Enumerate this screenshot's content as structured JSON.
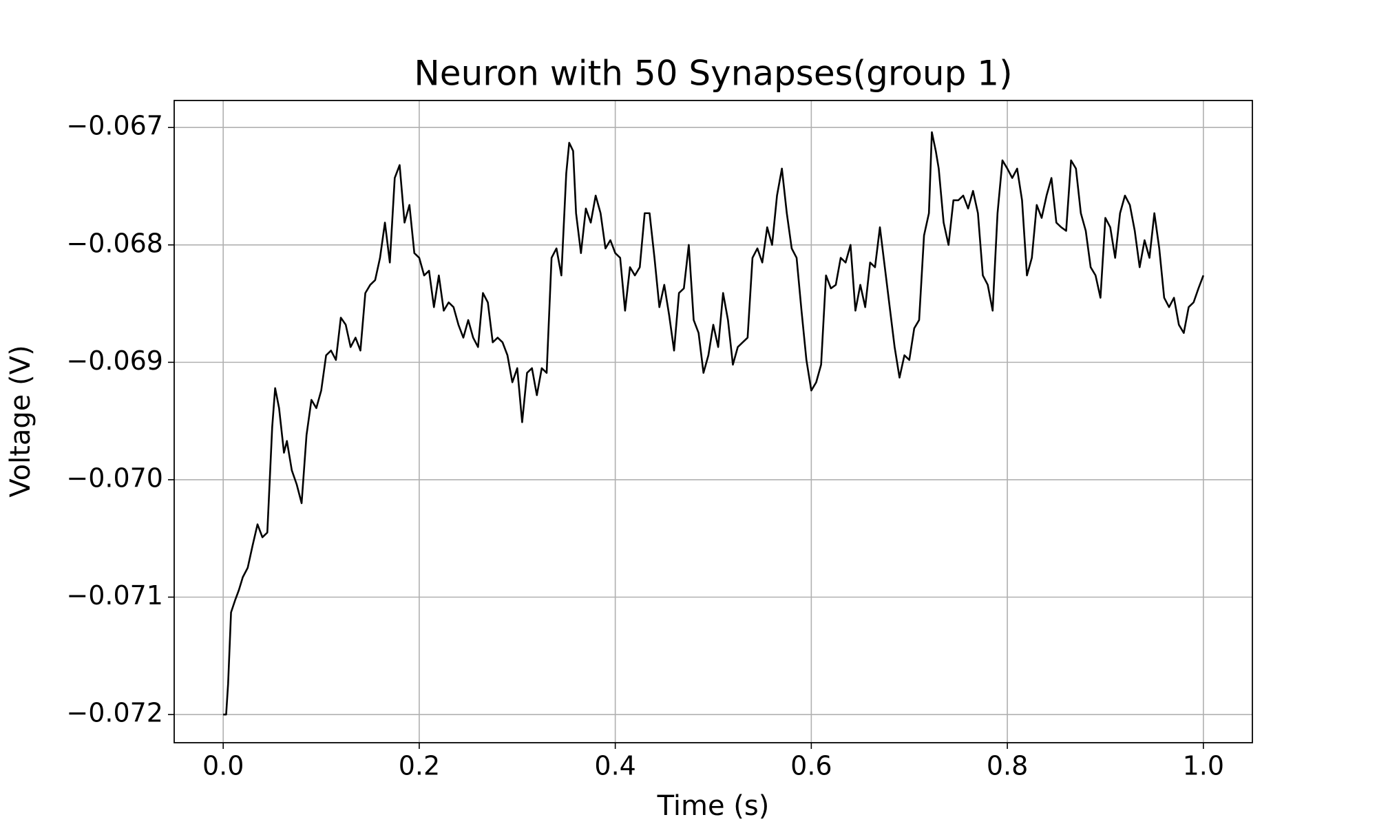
{
  "chart_data": {
    "type": "line",
    "title": "Neuron with 50 Synapses(group 1)",
    "xlabel": "Time (s)",
    "ylabel": "Voltage (V)",
    "color": "#000000",
    "grid": true,
    "xlim": [
      -0.05,
      1.05
    ],
    "ylim": [
      -0.07224,
      -0.06677
    ],
    "xticks": [
      {
        "value": 0,
        "label": "0.0"
      },
      0.2,
      0.4,
      0.6,
      0.8,
      {
        "value": 1,
        "label": "1.0"
      }
    ],
    "yticks": [
      {
        "value": -0.072,
        "label": "−0.072"
      },
      {
        "value": -0.071,
        "label": "−0.071"
      },
      {
        "value": -0.07,
        "label": "−0.070"
      },
      {
        "value": -0.069,
        "label": "−0.069"
      },
      {
        "value": -0.068,
        "label": "−0.068"
      },
      {
        "value": -0.067,
        "label": "−0.067"
      }
    ],
    "x": [
      0,
      0.003,
      0.005,
      0.008,
      0.012,
      0.016,
      0.02,
      0.025,
      0.03,
      0.035,
      0.04,
      0.045,
      0.05,
      0.053,
      0.057,
      0.062,
      0.065,
      0.07,
      0.075,
      0.08,
      0.085,
      0.09,
      0.095,
      0.1,
      0.105,
      0.11,
      0.115,
      0.12,
      0.125,
      0.13,
      0.135,
      0.14,
      0.145,
      0.15,
      0.155,
      0.16,
      0.165,
      0.17,
      0.175,
      0.18,
      0.185,
      0.19,
      0.195,
      0.2,
      0.205,
      0.21,
      0.215,
      0.22,
      0.225,
      0.23,
      0.235,
      0.24,
      0.245,
      0.25,
      0.255,
      0.26,
      0.265,
      0.27,
      0.275,
      0.28,
      0.285,
      0.29,
      0.295,
      0.3,
      0.305,
      0.31,
      0.315,
      0.32,
      0.325,
      0.33,
      0.335,
      0.34,
      0.345,
      0.35,
      0.353,
      0.357,
      0.36,
      0.365,
      0.37,
      0.375,
      0.38,
      0.385,
      0.39,
      0.395,
      0.4,
      0.405,
      0.41,
      0.415,
      0.42,
      0.425,
      0.43,
      0.435,
      0.44,
      0.445,
      0.45,
      0.455,
      0.46,
      0.465,
      0.47,
      0.475,
      0.48,
      0.485,
      0.49,
      0.495,
      0.5,
      0.505,
      0.51,
      0.515,
      0.52,
      0.525,
      0.53,
      0.535,
      0.54,
      0.545,
      0.55,
      0.555,
      0.56,
      0.565,
      0.57,
      0.575,
      0.58,
      0.585,
      0.59,
      0.595,
      0.6,
      0.605,
      0.61,
      0.615,
      0.62,
      0.625,
      0.63,
      0.635,
      0.64,
      0.645,
      0.65,
      0.655,
      0.66,
      0.665,
      0.67,
      0.675,
      0.68,
      0.685,
      0.69,
      0.695,
      0.7,
      0.705,
      0.71,
      0.715,
      0.72,
      0.723,
      0.727,
      0.73,
      0.735,
      0.74,
      0.745,
      0.75,
      0.755,
      0.76,
      0.765,
      0.77,
      0.775,
      0.78,
      0.785,
      0.79,
      0.795,
      0.8,
      0.805,
      0.81,
      0.815,
      0.82,
      0.825,
      0.83,
      0.835,
      0.84,
      0.845,
      0.85,
      0.855,
      0.86,
      0.865,
      0.87,
      0.875,
      0.88,
      0.885,
      0.89,
      0.895,
      0.9,
      0.905,
      0.91,
      0.915,
      0.92,
      0.925,
      0.93,
      0.935,
      0.94,
      0.945,
      0.95,
      0.955,
      0.96,
      0.965,
      0.97,
      0.975,
      0.98,
      0.985,
      0.99,
      0.995,
      1.0
    ],
    "values": [
      -0.072,
      -0.072,
      -0.07174,
      -0.07113,
      -0.07103,
      -0.07094,
      -0.07083,
      -0.07075,
      -0.07056,
      -0.07038,
      -0.07049,
      -0.07045,
      -0.06955,
      -0.06922,
      -0.06939,
      -0.06977,
      -0.06967,
      -0.06992,
      -0.07004,
      -0.0702,
      -0.06962,
      -0.06932,
      -0.06939,
      -0.06924,
      -0.06894,
      -0.0689,
      -0.06898,
      -0.06862,
      -0.06868,
      -0.06887,
      -0.06879,
      -0.0689,
      -0.06841,
      -0.06834,
      -0.0683,
      -0.06811,
      -0.06781,
      -0.06815,
      -0.06743,
      -0.06732,
      -0.06781,
      -0.06766,
      -0.06807,
      -0.06811,
      -0.06826,
      -0.06822,
      -0.06853,
      -0.06826,
      -0.06856,
      -0.06849,
      -0.06853,
      -0.06868,
      -0.06879,
      -0.06864,
      -0.06879,
      -0.06887,
      -0.06841,
      -0.06849,
      -0.06883,
      -0.06879,
      -0.06883,
      -0.06894,
      -0.06917,
      -0.06905,
      -0.06951,
      -0.06909,
      -0.06905,
      -0.06928,
      -0.06905,
      -0.06909,
      -0.06811,
      -0.06803,
      -0.06826,
      -0.06739,
      -0.06713,
      -0.0672,
      -0.06773,
      -0.06807,
      -0.06769,
      -0.06781,
      -0.06758,
      -0.06773,
      -0.06803,
      -0.06796,
      -0.06807,
      -0.06811,
      -0.06856,
      -0.06819,
      -0.06826,
      -0.06819,
      -0.06773,
      -0.06773,
      -0.06811,
      -0.06853,
      -0.06834,
      -0.0686,
      -0.0689,
      -0.06841,
      -0.06837,
      -0.068,
      -0.06864,
      -0.06875,
      -0.06909,
      -0.06894,
      -0.06868,
      -0.06887,
      -0.06841,
      -0.06864,
      -0.06902,
      -0.06887,
      -0.06883,
      -0.06879,
      -0.06811,
      -0.06803,
      -0.06815,
      -0.06785,
      -0.068,
      -0.06758,
      -0.06735,
      -0.06773,
      -0.06803,
      -0.06811,
      -0.06856,
      -0.06898,
      -0.06924,
      -0.06917,
      -0.06902,
      -0.06826,
      -0.06837,
      -0.06834,
      -0.06811,
      -0.06815,
      -0.068,
      -0.06856,
      -0.06834,
      -0.06853,
      -0.06815,
      -0.06819,
      -0.06785,
      -0.06819,
      -0.06853,
      -0.06887,
      -0.06913,
      -0.06894,
      -0.06898,
      -0.06871,
      -0.06864,
      -0.06792,
      -0.06773,
      -0.06704,
      -0.0672,
      -0.06735,
      -0.06781,
      -0.068,
      -0.06762,
      -0.06762,
      -0.06758,
      -0.06769,
      -0.06754,
      -0.06773,
      -0.06826,
      -0.06834,
      -0.06856,
      -0.06773,
      -0.06728,
      -0.06735,
      -0.06743,
      -0.06735,
      -0.06762,
      -0.06826,
      -0.06811,
      -0.06766,
      -0.06777,
      -0.06758,
      -0.06743,
      -0.06781,
      -0.06785,
      -0.06788,
      -0.06728,
      -0.06735,
      -0.06773,
      -0.06788,
      -0.06819,
      -0.06826,
      -0.06845,
      -0.06777,
      -0.06785,
      -0.06811,
      -0.06773,
      -0.06758,
      -0.06766,
      -0.06788,
      -0.06819,
      -0.06796,
      -0.06811,
      -0.06773,
      -0.06803,
      -0.06845,
      -0.06853,
      -0.06845,
      -0.06868,
      -0.06875,
      -0.06853,
      -0.06849,
      -0.06837,
      -0.06826
    ]
  }
}
